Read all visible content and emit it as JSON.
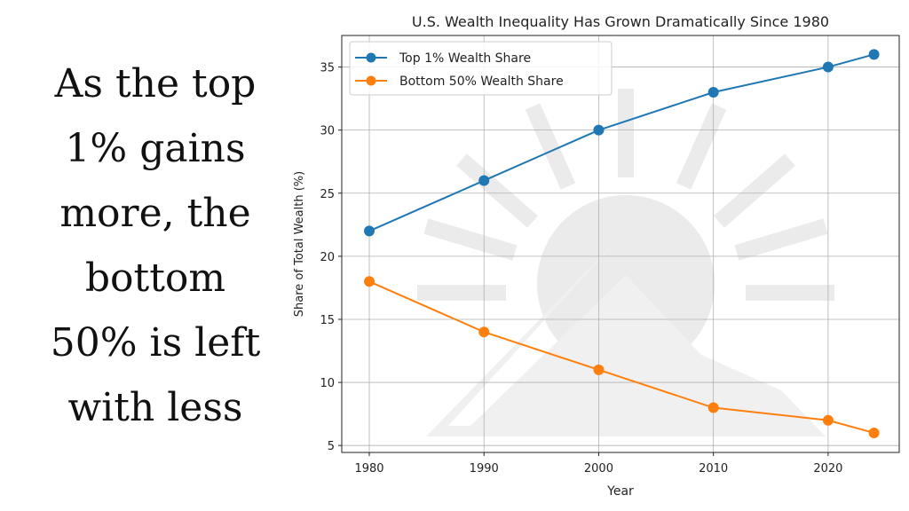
{
  "caption": {
    "lines": [
      "As the top",
      "1% gains",
      "more, the",
      "bottom",
      "50% is left",
      "with less"
    ]
  },
  "chart_data": {
    "type": "line",
    "title": "U.S. Wealth Inequality Has Grown Dramatically Since 1980",
    "xlabel": "Year",
    "ylabel": "Share of Total Wealth (%)",
    "x": [
      1980,
      1990,
      2000,
      2010,
      2020,
      2024
    ],
    "series": [
      {
        "name": "Top 1% Wealth Share",
        "values": [
          22,
          26,
          30,
          33,
          35,
          36
        ],
        "color": "#1f77b4"
      },
      {
        "name": "Bottom 50% Wealth Share",
        "values": [
          18,
          14,
          11,
          8,
          7,
          6
        ],
        "color": "#ff7f0e"
      }
    ],
    "xticks": [
      1980,
      1990,
      2000,
      2010,
      2020
    ],
    "yticks": [
      5,
      10,
      15,
      20,
      25,
      30,
      35
    ],
    "xlim": [
      1977.6,
      2026.2
    ],
    "ylim": [
      4.45,
      37.5
    ],
    "grid": true,
    "legend": "top-left"
  }
}
